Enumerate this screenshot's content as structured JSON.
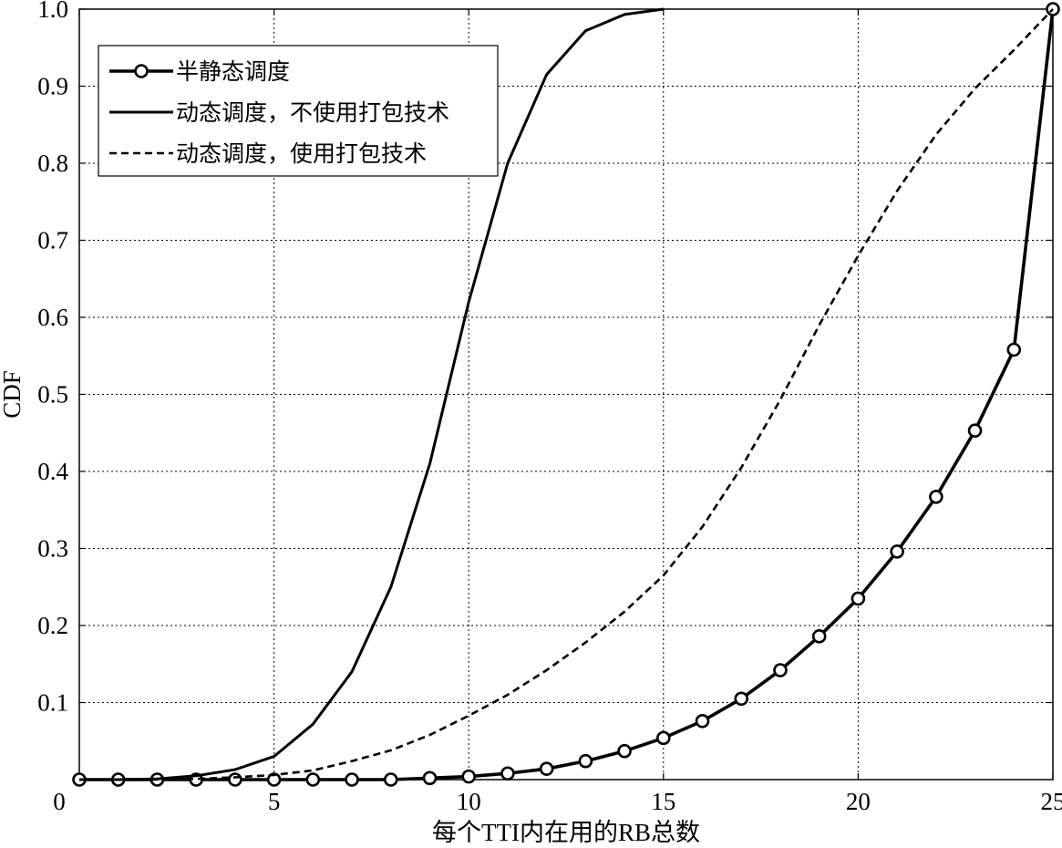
{
  "chart_data": {
    "type": "line",
    "title": "",
    "xlabel": "每个TTI内在用的RB总数",
    "ylabel": "CDF",
    "xlim": [
      0,
      25
    ],
    "ylim": [
      0,
      1.0
    ],
    "grid": true,
    "legend_position": "top-left",
    "x_ticks": [
      "0",
      "5",
      "10",
      "15",
      "20",
      "25"
    ],
    "y_ticks": [
      "0.1",
      "0.2",
      "0.3",
      "0.4",
      "0.5",
      "0.6",
      "0.7",
      "0.8",
      "0.9",
      "1.0"
    ],
    "series": [
      {
        "name": "半静态调度",
        "style": "solid-circle",
        "x": [
          0,
          1,
          2,
          3,
          4,
          5,
          6,
          7,
          8,
          9,
          10,
          11,
          12,
          13,
          14,
          15,
          16,
          17,
          18,
          19,
          20,
          21,
          22,
          23,
          24,
          25
        ],
        "y": [
          0,
          0,
          0,
          0,
          0,
          0,
          0,
          0,
          0,
          0.002,
          0.004,
          0.008,
          0.014,
          0.024,
          0.037,
          0.054,
          0.076,
          0.105,
          0.142,
          0.186,
          0.235,
          0.296,
          0.367,
          0.453,
          0.558,
          1.0
        ]
      },
      {
        "name": "动态调度，不使用打包技术",
        "style": "solid",
        "x": [
          0,
          1,
          2,
          3,
          4,
          5,
          6,
          7,
          8,
          9,
          10,
          11,
          12,
          13,
          14,
          15
        ],
        "y": [
          0,
          0,
          0.001,
          0.005,
          0.013,
          0.03,
          0.072,
          0.14,
          0.25,
          0.41,
          0.62,
          0.8,
          0.915,
          0.972,
          0.993,
          1.0
        ]
      },
      {
        "name": "动态调度，使用打包技术",
        "style": "dashed",
        "x": [
          0,
          1,
          2,
          3,
          4,
          5,
          6,
          7,
          8,
          9,
          10,
          11,
          12,
          13,
          14,
          15,
          16,
          17,
          18,
          19,
          20,
          21,
          22,
          23,
          24,
          25
        ],
        "y": [
          0,
          0,
          0,
          0.001,
          0.003,
          0.006,
          0.012,
          0.024,
          0.038,
          0.058,
          0.083,
          0.11,
          0.142,
          0.178,
          0.218,
          0.265,
          0.328,
          0.405,
          0.493,
          0.59,
          0.68,
          0.764,
          0.837,
          0.897,
          0.947,
          1.0
        ]
      }
    ]
  }
}
